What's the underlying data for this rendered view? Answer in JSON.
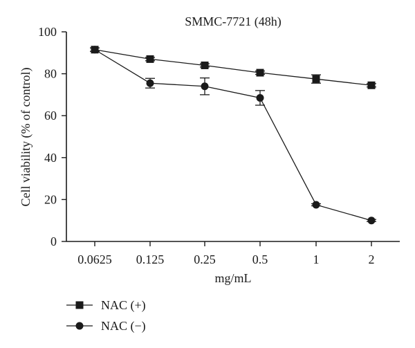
{
  "chart_data": {
    "type": "line",
    "title": "SMMC-7721 (48h)",
    "xlabel": "mg/mL",
    "ylabel": "Cell viability (% of control)",
    "categories": [
      "0.0625",
      "0.125",
      "0.25",
      "0.5",
      "1",
      "2"
    ],
    "ylim": [
      0,
      100
    ],
    "yticks": [
      0,
      20,
      40,
      60,
      80,
      100
    ],
    "grid": false,
    "legend_position": "bottom-left",
    "series": [
      {
        "name": "NAC (+)",
        "marker": "square",
        "values": [
          91.5,
          87.0,
          84.0,
          80.5,
          77.5,
          74.5
        ],
        "errors": [
          0.8,
          0.8,
          0.8,
          0.8,
          2.0,
          0.8
        ]
      },
      {
        "name": "NAC (−)",
        "marker": "circle",
        "values": [
          91.5,
          75.5,
          74.0,
          68.5,
          17.5,
          10.0
        ],
        "errors": [
          0.8,
          2.3,
          4.0,
          3.5,
          0.5,
          0.5
        ]
      }
    ]
  }
}
